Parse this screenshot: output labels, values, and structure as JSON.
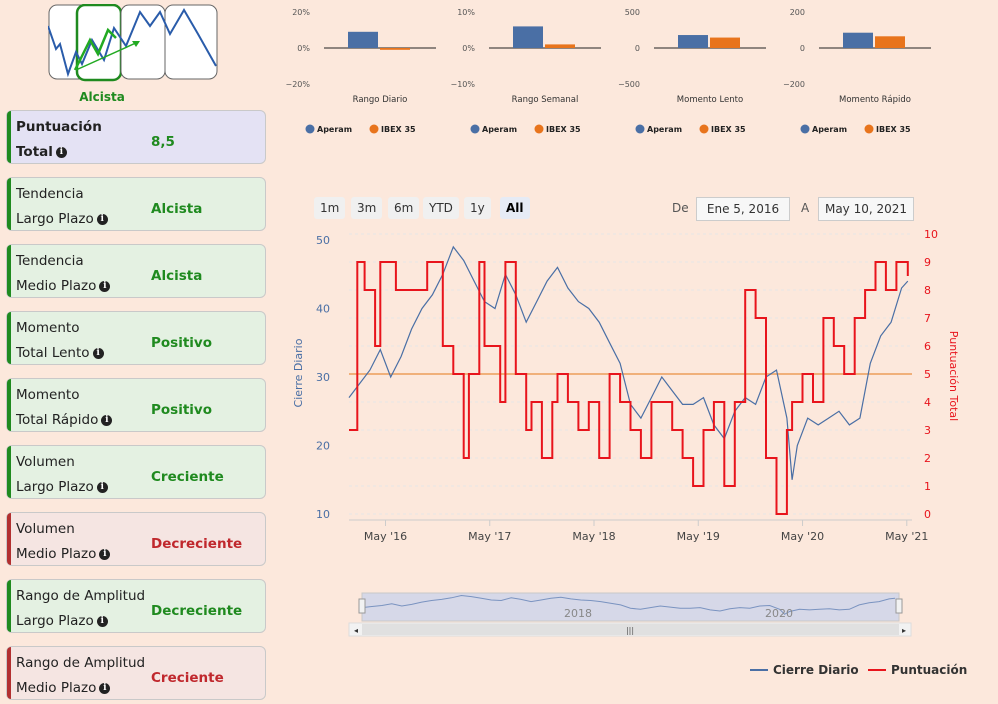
{
  "trend": {
    "label": "Alcista",
    "selected_index": 1
  },
  "cards": [
    {
      "line1": "Puntuación",
      "line2": "Total",
      "value": "8,5",
      "status": "neutral"
    },
    {
      "line1": "Tendencia",
      "line2": "Largo Plazo",
      "value": "Alcista",
      "status": "good"
    },
    {
      "line1": "Tendencia",
      "line2": "Medio Plazo",
      "value": "Alcista",
      "status": "good"
    },
    {
      "line1": "Momento",
      "line2": "Total Lento",
      "value": "Positivo",
      "status": "good"
    },
    {
      "line1": "Momento",
      "line2": "Total Rápido",
      "value": "Positivo",
      "status": "good"
    },
    {
      "line1": "Volumen",
      "line2": "Largo Plazo",
      "value": "Creciente",
      "status": "good"
    },
    {
      "line1": "Volumen",
      "line2": "Medio Plazo",
      "value": "Decreciente",
      "status": "bad"
    },
    {
      "line1": "Rango de Amplitud",
      "line2": "Largo Plazo",
      "value": "Decreciente",
      "status": "good"
    },
    {
      "line1": "Rango de Amplitud",
      "line2": "Medio Plazo",
      "value": "Creciente",
      "status": "bad"
    }
  ],
  "colors": {
    "aperam": "#4a6fa5",
    "ibex": "#e8741c",
    "score": "#e8141c",
    "good": "#1f8a1f",
    "bad": "#c0282d"
  },
  "range_selector": {
    "buttons": [
      "1m",
      "3m",
      "6m",
      "YTD",
      "1y",
      "All"
    ],
    "selected": "All",
    "from_label": "De",
    "from_value": "Ene 5, 2016",
    "to_label": "A",
    "to_value": "May 10, 2021"
  },
  "navigator": {
    "labels": [
      "2018",
      "2020"
    ]
  },
  "chart_data": [
    {
      "type": "bar",
      "title": "Rango Diario",
      "categories": [
        "Aperam",
        "IBEX 35"
      ],
      "values": [
        9,
        -1
      ],
      "ylim": [
        -20,
        20
      ],
      "yticks": [
        "20%",
        "0%",
        "−20%"
      ]
    },
    {
      "type": "bar",
      "title": "Rango Semanal",
      "categories": [
        "Aperam",
        "IBEX 35"
      ],
      "values": [
        6,
        1
      ],
      "ylim": [
        -10,
        10
      ],
      "yticks": [
        "10%",
        "0%",
        "−10%"
      ]
    },
    {
      "type": "bar",
      "title": "Momento Lento",
      "categories": [
        "Aperam",
        "IBEX 35"
      ],
      "values": [
        180,
        145
      ],
      "ylim": [
        -500,
        500
      ],
      "yticks": [
        "500",
        "0",
        "−500"
      ]
    },
    {
      "type": "bar",
      "title": "Momento Rápido",
      "categories": [
        "Aperam",
        "IBEX 35"
      ],
      "values": [
        85,
        65
      ],
      "ylim": [
        -200,
        200
      ],
      "yticks": [
        "200",
        "0",
        "−200"
      ]
    },
    {
      "type": "line",
      "title": "",
      "x_ticks": [
        "May '16",
        "May '17",
        "May '18",
        "May '19",
        "May '20",
        "May '21"
      ],
      "ylabel": "Cierre Diario",
      "y2label": "Puntuación Total",
      "ylim": [
        10,
        50
      ],
      "y_ticks": [
        10,
        20,
        30,
        40,
        50
      ],
      "y2lim": [
        0,
        10
      ],
      "y2_ticks": [
        0,
        1,
        2,
        3,
        4,
        5,
        6,
        7,
        8,
        9,
        10
      ],
      "reference_line_score": 5,
      "series": [
        {
          "name": "Cierre Diario",
          "axis": "left",
          "x": [
            2016.0,
            2016.1,
            2016.2,
            2016.3,
            2016.4,
            2016.5,
            2016.6,
            2016.7,
            2016.8,
            2016.9,
            2017.0,
            2017.1,
            2017.2,
            2017.3,
            2017.4,
            2017.5,
            2017.6,
            2017.7,
            2017.8,
            2017.9,
            2018.0,
            2018.1,
            2018.2,
            2018.3,
            2018.4,
            2018.5,
            2018.6,
            2018.7,
            2018.8,
            2018.9,
            2019.0,
            2019.1,
            2019.2,
            2019.3,
            2019.4,
            2019.5,
            2019.6,
            2019.7,
            2019.8,
            2019.9,
            2020.0,
            2020.1,
            2020.2,
            2020.25,
            2020.3,
            2020.4,
            2020.5,
            2020.6,
            2020.7,
            2020.8,
            2020.9,
            2021.0,
            2021.1,
            2021.2,
            2021.3,
            2021.36
          ],
          "y": [
            27,
            29,
            31,
            34,
            30,
            33,
            37,
            40,
            42,
            45,
            49,
            47,
            44,
            41,
            40,
            45,
            42,
            38,
            41,
            44,
            46,
            43,
            41,
            40,
            38,
            35,
            32,
            26,
            24,
            27,
            30,
            28,
            26,
            26,
            27,
            23,
            21,
            25,
            27,
            26,
            30,
            31,
            24,
            15,
            20,
            24,
            23,
            24,
            25,
            23,
            24,
            32,
            36,
            38,
            43,
            44
          ]
        },
        {
          "name": "Puntuación",
          "axis": "right",
          "x": [
            2016.0,
            2016.08,
            2016.15,
            2016.25,
            2016.3,
            2016.45,
            2016.5,
            2016.62,
            2016.75,
            2016.9,
            2017.0,
            2017.1,
            2017.15,
            2017.25,
            2017.3,
            2017.45,
            2017.5,
            2017.6,
            2017.7,
            2017.75,
            2017.85,
            2017.95,
            2018.0,
            2018.1,
            2018.2,
            2018.3,
            2018.4,
            2018.5,
            2018.6,
            2018.7,
            2018.8,
            2018.9,
            2019.0,
            2019.1,
            2019.2,
            2019.3,
            2019.4,
            2019.5,
            2019.6,
            2019.7,
            2019.8,
            2019.9,
            2020.0,
            2020.1,
            2020.2,
            2020.25,
            2020.35,
            2020.45,
            2020.55,
            2020.65,
            2020.75,
            2020.85,
            2020.95,
            2021.05,
            2021.15,
            2021.25,
            2021.36
          ],
          "y": [
            3,
            9,
            8,
            6,
            9,
            8,
            8,
            8,
            9,
            6,
            5,
            2,
            5,
            9,
            6,
            4,
            9,
            5,
            3,
            4,
            2,
            4,
            5,
            4,
            3,
            4,
            2,
            5,
            4,
            3,
            2,
            4,
            4,
            3,
            2,
            1,
            3,
            4,
            1,
            4,
            8,
            7,
            2,
            0,
            3,
            4,
            5,
            4,
            7,
            6,
            5,
            7,
            8,
            9,
            8,
            9,
            8.5
          ]
        }
      ]
    }
  ],
  "legend": {
    "primary": "Aperam",
    "secondary": "IBEX 35",
    "line1": "Cierre Diario",
    "line2": "Puntuación"
  }
}
